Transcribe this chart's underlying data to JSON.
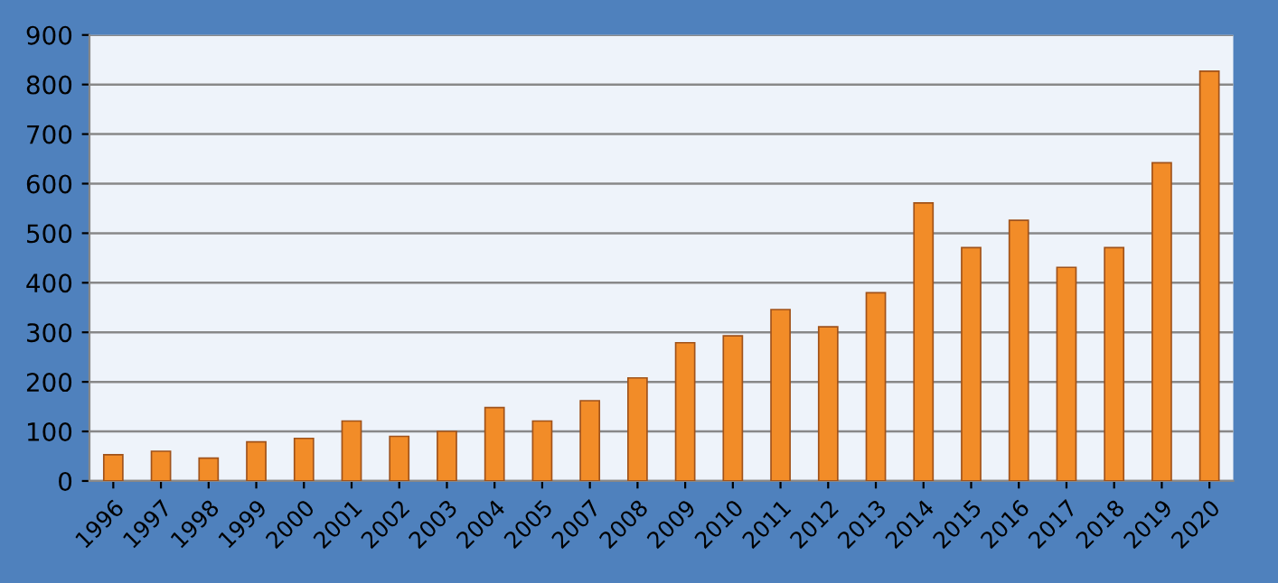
{
  "chart_data": {
    "type": "bar",
    "categories": [
      "1996",
      "1997",
      "1998",
      "1999",
      "2000",
      "2001",
      "2002",
      "2003",
      "2004",
      "2005",
      "2007",
      "2008",
      "2009",
      "2010",
      "2011",
      "2012",
      "2013",
      "2014",
      "2015",
      "2016",
      "2017",
      "2018",
      "2019",
      "2020"
    ],
    "values": [
      53,
      60,
      46,
      79,
      86,
      121,
      90,
      100,
      148,
      121,
      162,
      208,
      279,
      293,
      346,
      311,
      380,
      561,
      471,
      526,
      431,
      471,
      642,
      827
    ],
    "color": "#f28c28",
    "ylim": [
      0,
      900
    ],
    "yticks": [
      0,
      100,
      200,
      300,
      400,
      500,
      600,
      700,
      800,
      900
    ],
    "grid": "y"
  }
}
